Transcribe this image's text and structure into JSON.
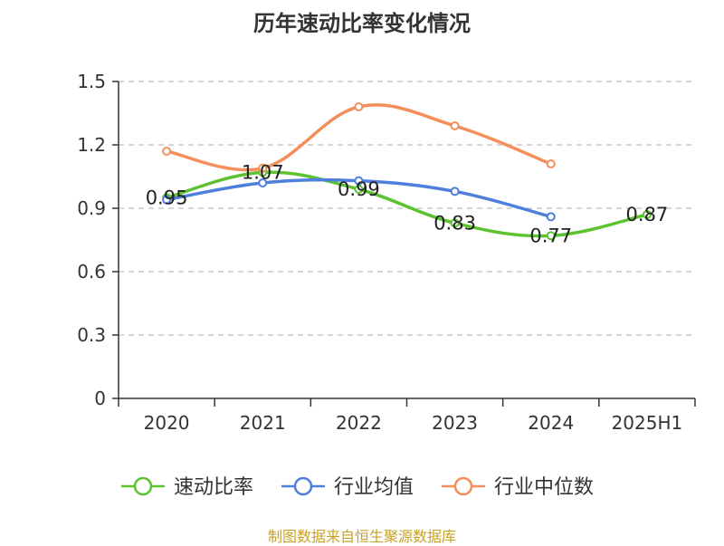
{
  "chart_data": {
    "type": "line",
    "title": "历年速动比率变化情况",
    "categories": [
      "2020",
      "2021",
      "2022",
      "2023",
      "2024",
      "2025H1"
    ],
    "ylim": [
      0,
      1.5
    ],
    "yticks": [
      "0",
      "0.3",
      "0.6",
      "0.9",
      "1.2",
      "1.5"
    ],
    "yticks_values": [
      0,
      0.3,
      0.6,
      0.9,
      1.2,
      1.5
    ],
    "grid": true,
    "legend_position": "bottom",
    "series": [
      {
        "name": "速动比率",
        "color": "#5dc230",
        "values": [
          0.95,
          1.07,
          0.99,
          0.83,
          0.77,
          0.87
        ],
        "labels": [
          "0.95",
          "1.07",
          "0.99",
          "0.83",
          "0.77",
          "0.87"
        ]
      },
      {
        "name": "行业均值",
        "color": "#4e7fdc",
        "values": [
          0.94,
          1.02,
          1.03,
          0.98,
          0.86,
          null
        ]
      },
      {
        "name": "行业中位数",
        "color": "#f48f5c",
        "values": [
          1.17,
          1.09,
          1.38,
          1.29,
          1.11,
          null
        ]
      }
    ]
  },
  "source": "制图数据来自恒生聚源数据库"
}
